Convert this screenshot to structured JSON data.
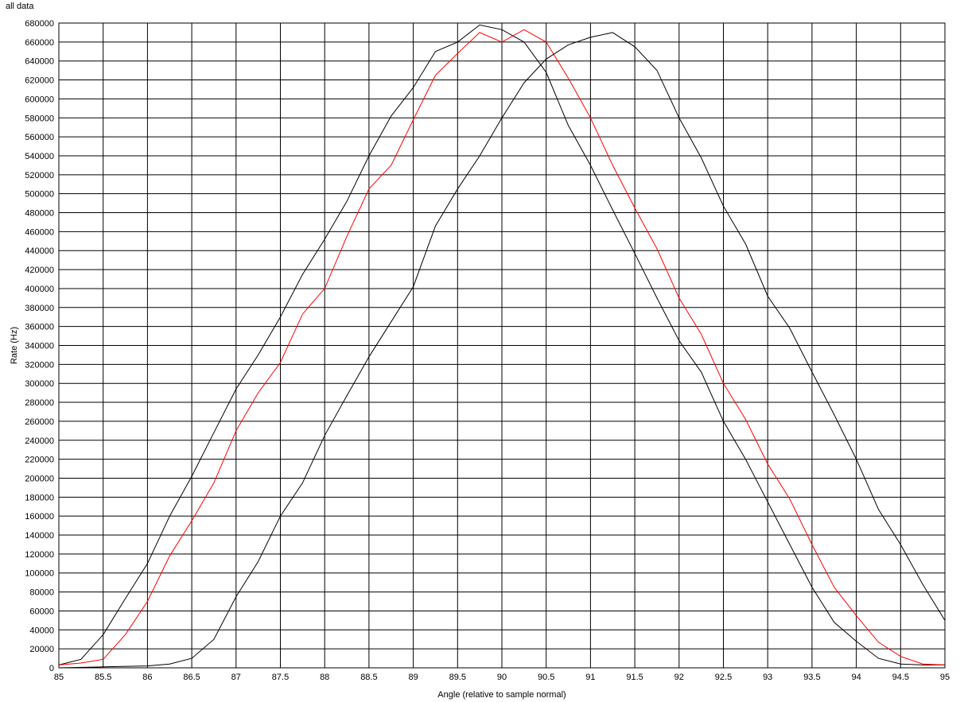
{
  "chart_data": {
    "type": "line",
    "title": "all data",
    "xlabel": "Angle (relative to sample normal)",
    "ylabel": "Rate (Hz)",
    "xlim": [
      85,
      95
    ],
    "ylim": [
      0,
      680000
    ],
    "grid": true,
    "x_ticks": [
      "85",
      "85.5",
      "86",
      "86.5",
      "87",
      "87.5",
      "88",
      "88.5",
      "89",
      "89.5",
      "90",
      "90.5",
      "91",
      "91.5",
      "92",
      "92.5",
      "93",
      "93.5",
      "94",
      "94.5",
      "95"
    ],
    "y_ticks": [
      "0",
      "20000",
      "40000",
      "60000",
      "80000",
      "100000",
      "120000",
      "140000",
      "160000",
      "180000",
      "200000",
      "220000",
      "240000",
      "260000",
      "280000",
      "300000",
      "320000",
      "340000",
      "360000",
      "380000",
      "400000",
      "420000",
      "440000",
      "460000",
      "480000",
      "500000",
      "520000",
      "540000",
      "560000",
      "580000",
      "600000",
      "620000",
      "640000",
      "660000",
      "680000"
    ],
    "series": [
      {
        "color": "#000000",
        "x": [
          85,
          85.25,
          85.5,
          85.75,
          86,
          86.25,
          86.5,
          86.75,
          87,
          87.25,
          87.5,
          87.75,
          88,
          88.25,
          88.5,
          88.75,
          89,
          89.25,
          89.5,
          89.75,
          90,
          90.25,
          90.5,
          90.75,
          91,
          91.25,
          91.5,
          91.75,
          92,
          92.25,
          92.5,
          92.75,
          93,
          93.25,
          93.5,
          93.75,
          94,
          94.25,
          94.5,
          94.75,
          95
        ],
        "y": [
          3000,
          9000,
          35000,
          73000,
          110000,
          160000,
          202000,
          248000,
          294000,
          330000,
          370000,
          415000,
          452000,
          492000,
          540000,
          582000,
          612000,
          650000,
          660000,
          678000,
          673000,
          660000,
          628000,
          572000,
          530000,
          483000,
          437000,
          390000,
          345000,
          312000,
          260000,
          220000,
          175000,
          130000,
          85000,
          48000,
          28000,
          10000,
          4000,
          3000,
          3000
        ]
      },
      {
        "color": "#ff0000",
        "x": [
          85,
          85.25,
          85.5,
          85.75,
          86,
          86.25,
          86.5,
          86.75,
          87,
          87.25,
          87.5,
          87.75,
          88,
          88.25,
          88.5,
          88.75,
          89,
          89.25,
          89.5,
          89.75,
          90,
          90.25,
          90.5,
          90.75,
          91,
          91.25,
          91.5,
          91.75,
          92,
          92.25,
          92.5,
          92.75,
          93,
          93.25,
          93.5,
          93.75,
          94,
          94.25,
          94.5,
          94.75,
          95
        ],
        "y": [
          3000,
          5000,
          9000,
          35000,
          70000,
          118000,
          155000,
          195000,
          250000,
          290000,
          322000,
          373000,
          400000,
          455000,
          505000,
          530000,
          578000,
          625000,
          648000,
          670000,
          660000,
          673000,
          660000,
          622000,
          580000,
          530000,
          485000,
          442000,
          390000,
          352000,
          300000,
          262000,
          215000,
          178000,
          130000,
          85000,
          55000,
          27000,
          12000,
          4000,
          3000
        ]
      },
      {
        "color": "#000000",
        "x": [
          85,
          85.5,
          86,
          86.25,
          86.5,
          86.75,
          87,
          87.25,
          87.5,
          87.75,
          88,
          88.25,
          88.5,
          88.75,
          89,
          89.25,
          89.5,
          89.75,
          90,
          90.25,
          90.5,
          90.75,
          91,
          91.25,
          91.5,
          91.75,
          92,
          92.25,
          92.5,
          92.75,
          93,
          93.25,
          93.5,
          93.75,
          94,
          94.25,
          94.5,
          94.75,
          95
        ],
        "y": [
          0,
          1000,
          2000,
          4000,
          10000,
          30000,
          75000,
          112000,
          160000,
          195000,
          245000,
          287000,
          328000,
          365000,
          402000,
          466000,
          505000,
          540000,
          580000,
          617000,
          642000,
          657000,
          665000,
          670000,
          655000,
          630000,
          580000,
          538000,
          487000,
          447000,
          392000,
          358000,
          312000,
          267000,
          220000,
          167000,
          130000,
          88000,
          50000
        ]
      }
    ]
  }
}
